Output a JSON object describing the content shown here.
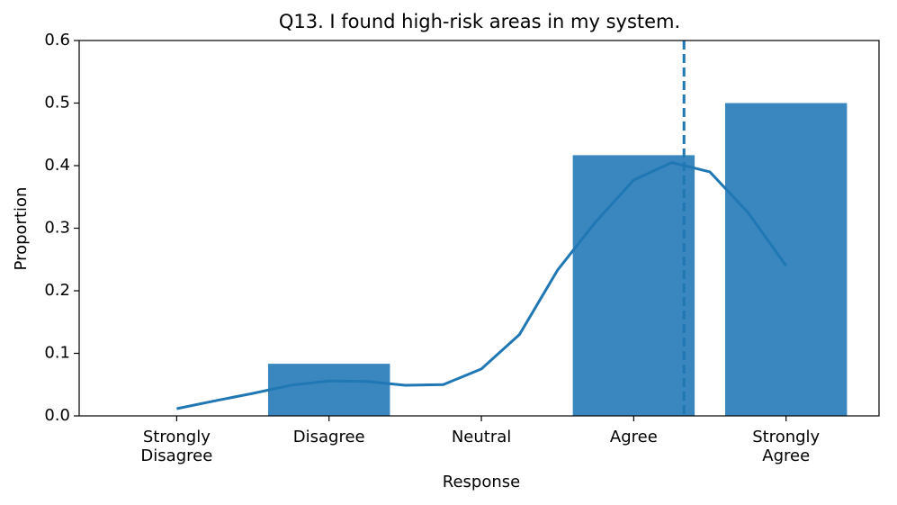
{
  "chart_data": {
    "type": "bar",
    "title": "Q13. I found high-risk areas in my system.",
    "xlabel": "Response",
    "ylabel": "Proportion",
    "x": [
      1,
      2,
      3,
      4,
      5
    ],
    "values": [
      0,
      0.0833,
      0,
      0.4167,
      0.5
    ],
    "color": "#3a87bf",
    "bar_width": 0.8,
    "xlim": [
      0.36,
      5.61
    ],
    "xticks": [
      {
        "value": 1,
        "label": "Strongly\nDisagree"
      },
      {
        "value": 2,
        "label": "Disagree"
      },
      {
        "value": 3,
        "label": "Neutral"
      },
      {
        "value": 4,
        "label": "Agree"
      },
      {
        "value": 5,
        "label": "Strongly\nAgree"
      }
    ],
    "ylim": [
      0,
      0.6
    ],
    "yticks": [
      {
        "value": 0,
        "label": "0.0"
      },
      0.1,
      0.2,
      0.3,
      0.4,
      0.5,
      {
        "value": 0.6,
        "label": "0.6"
      }
    ],
    "kde": {
      "color": "#1f77b4",
      "x": [
        1,
        1.25,
        1.5,
        1.75,
        2,
        2.25,
        2.5,
        2.75,
        3,
        3.25,
        3.5,
        3.75,
        4,
        4.25,
        4.5,
        4.75,
        5
      ],
      "values": [
        0.0115,
        0.024,
        0.036,
        0.049,
        0.056,
        0.055,
        0.049,
        0.05,
        0.075,
        0.13,
        0.233,
        0.31,
        0.377,
        0.405,
        0.39,
        0.325,
        0.24
      ]
    },
    "mean_line": {
      "x": 4.33,
      "color": "#1f77b4"
    }
  }
}
